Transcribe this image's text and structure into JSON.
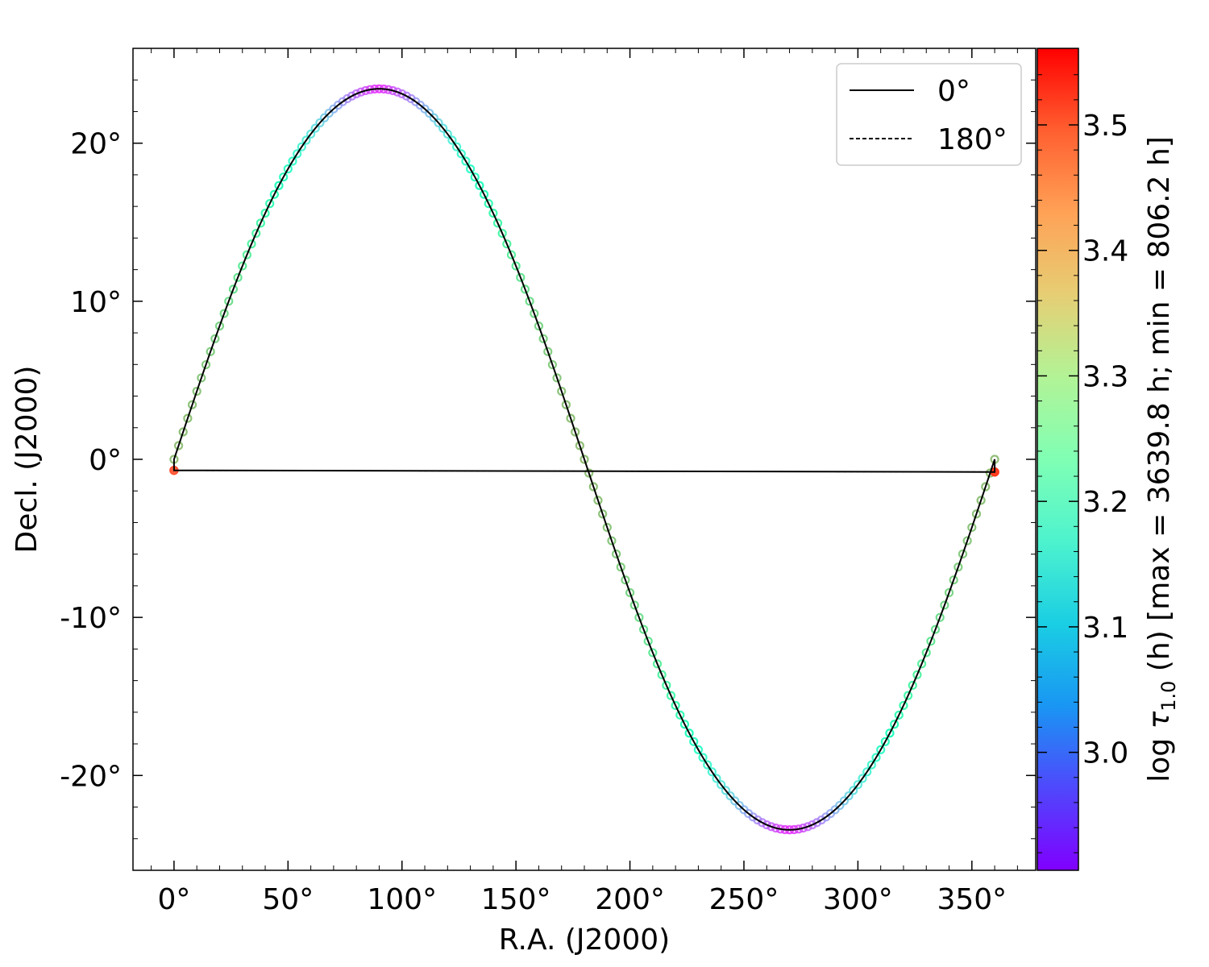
{
  "chart_data": {
    "type": "scatter",
    "xlabel": "R.A. (J2000)",
    "ylabel": "Decl. (J2000)",
    "xlim": [
      -18,
      378
    ],
    "ylim": [
      -26,
      26
    ],
    "x_ticks": [
      0,
      50,
      100,
      150,
      200,
      250,
      300,
      350
    ],
    "x_tick_labels": [
      "0°",
      "50°",
      "100°",
      "150°",
      "200°",
      "250°",
      "300°",
      "350°"
    ],
    "y_ticks": [
      20,
      10,
      0,
      -10,
      -20
    ],
    "y_tick_labels": [
      "20°",
      "10°",
      "0°",
      "-10°",
      "-20°"
    ],
    "grid": false,
    "legend": {
      "placement": "top-right",
      "entries": [
        {
          "label": "0°",
          "style": "solid"
        },
        {
          "label": "180°",
          "style": "dashed"
        }
      ]
    },
    "curve": {
      "obliquity_deg": 23.44,
      "endpoint_decl": [
        -0.7,
        -0.8
      ],
      "ra_range": [
        0,
        360
      ]
    },
    "colorbar": {
      "colormap": "rainbow",
      "range": [
        2.906,
        3.561
      ],
      "ticks": [
        3.0,
        3.1,
        3.2,
        3.3,
        3.4,
        3.5
      ],
      "tick_labels": [
        "3.0",
        "3.1",
        "3.2",
        "3.3",
        "3.4",
        "3.5"
      ],
      "label_prefix": "log ",
      "label_symbol": "τ",
      "label_subscript": "1.0",
      "label_suffix": " (h) [max = 3639.8 h; min = 806.2 h]"
    }
  }
}
